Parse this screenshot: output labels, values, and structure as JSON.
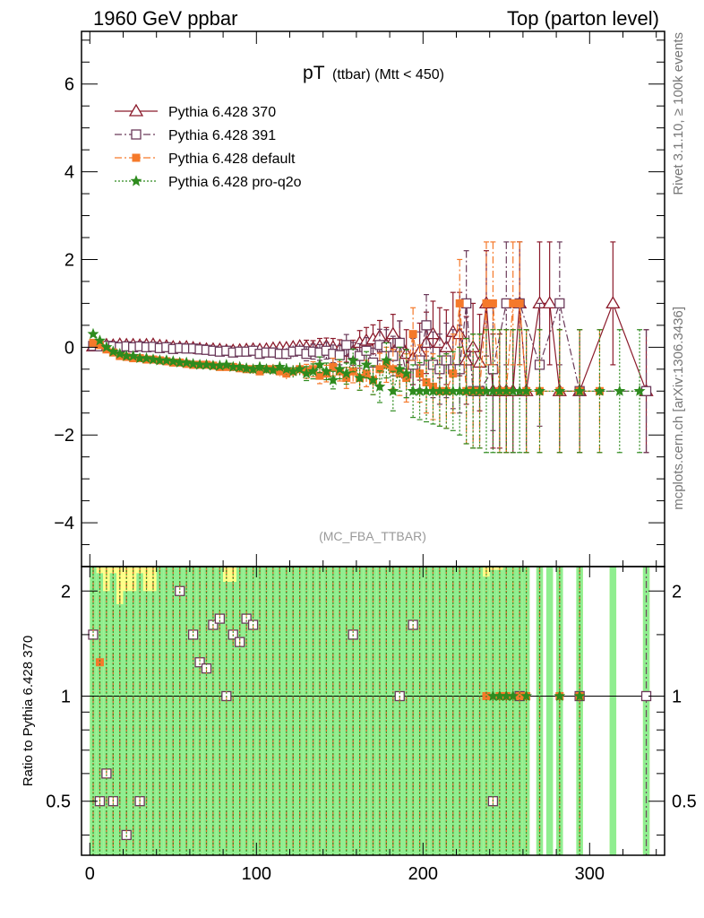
{
  "header": {
    "left": "1960 GeV ppbar",
    "right": "Top (parton level)"
  },
  "side_labels": {
    "rivet": "Rivet 3.1.10, ≥ 100k events",
    "mcplots": "mcplots.cern.ch [arXiv:1306.3436]"
  },
  "chart_data": {
    "type": "scatter",
    "title_main": "pT",
    "title_sub": "(ttbar) (Mtt < 450)",
    "watermark": "(MC_FBA_TTBAR)",
    "xlim": [
      -5,
      345
    ],
    "ylim": [
      -5,
      7.2
    ],
    "xticks": [
      0,
      100,
      200,
      300
    ],
    "yticks": [
      -4,
      -2,
      0,
      2,
      4,
      6
    ],
    "ratio": {
      "ylabel": "Ratio to Pythia 6.428 370",
      "ylim": [
        0.35,
        2.35
      ],
      "yticks": [
        0.5,
        1,
        2
      ],
      "reference_line": 1
    },
    "legend_position": "top-left",
    "series": [
      {
        "name": "Pythia 6.428 370",
        "color": "#8b1a2b",
        "marker": "open-triangle",
        "line": "solid",
        "x": [
          2,
          6,
          10,
          14,
          18,
          22,
          26,
          30,
          34,
          38,
          42,
          46,
          50,
          54,
          58,
          62,
          66,
          70,
          74,
          78,
          82,
          86,
          90,
          94,
          98,
          102,
          106,
          110,
          114,
          118,
          122,
          126,
          130,
          134,
          138,
          142,
          146,
          150,
          154,
          158,
          162,
          166,
          170,
          174,
          178,
          182,
          186,
          190,
          194,
          198,
          202,
          206,
          210,
          214,
          218,
          222,
          226,
          230,
          234,
          238,
          242,
          246,
          250,
          254,
          258,
          262,
          270,
          276,
          282,
          294,
          314,
          334
        ],
        "y": [
          0.02,
          0.04,
          0.05,
          0.04,
          0.06,
          0.05,
          0.05,
          0.04,
          0.05,
          0.06,
          0.03,
          0.02,
          0.0,
          -0.01,
          0.0,
          -0.02,
          -0.04,
          -0.05,
          -0.05,
          -0.06,
          -0.08,
          -0.08,
          -0.07,
          -0.06,
          -0.05,
          -0.06,
          -0.05,
          -0.03,
          -0.02,
          -0.02,
          0.0,
          0.02,
          0.0,
          -0.02,
          0.02,
          0.02,
          0.0,
          -0.05,
          -0.1,
          -0.1,
          0.1,
          0.15,
          0.18,
          0.25,
          0.05,
          0.3,
          0.1,
          -0.15,
          -0.25,
          -0.1,
          0.1,
          0.3,
          0.1,
          0.0,
          0.35,
          0.3,
          -0.3,
          0.0,
          -0.35,
          1.0,
          -1.0,
          -1.0,
          -1.0,
          -1.0,
          1.0,
          -1.0,
          1.0,
          1.0,
          -1.0,
          -1.0,
          1.0,
          -1.0
        ],
        "err": [
          0.05,
          0.05,
          0.05,
          0.05,
          0.05,
          0.05,
          0.05,
          0.05,
          0.05,
          0.06,
          0.06,
          0.06,
          0.06,
          0.06,
          0.07,
          0.07,
          0.07,
          0.08,
          0.08,
          0.08,
          0.09,
          0.09,
          0.1,
          0.1,
          0.1,
          0.11,
          0.11,
          0.12,
          0.12,
          0.13,
          0.14,
          0.15,
          0.16,
          0.17,
          0.18,
          0.19,
          0.2,
          0.22,
          0.24,
          0.26,
          0.28,
          0.3,
          0.33,
          0.36,
          0.4,
          0.45,
          0.5,
          0.55,
          0.6,
          0.65,
          0.7,
          0.75,
          0.8,
          0.85,
          0.9,
          0.95,
          1.0,
          1.0,
          1.1,
          1.2,
          1.3,
          1.3,
          1.4,
          1.4,
          1.4,
          1.4,
          1.4,
          1.4,
          1.4,
          1.4,
          1.4,
          1.4
        ]
      },
      {
        "name": "Pythia 6.428 391",
        "color": "#6b3a5a",
        "marker": "open-square",
        "line": "dashdot",
        "x": [
          2,
          6,
          10,
          14,
          18,
          22,
          26,
          30,
          34,
          38,
          42,
          46,
          50,
          54,
          58,
          62,
          66,
          70,
          74,
          78,
          82,
          86,
          90,
          94,
          98,
          102,
          106,
          110,
          114,
          118,
          122,
          126,
          130,
          134,
          138,
          142,
          146,
          150,
          154,
          158,
          162,
          166,
          170,
          174,
          178,
          182,
          186,
          190,
          194,
          198,
          202,
          206,
          210,
          214,
          218,
          222,
          226,
          230,
          234,
          242,
          250,
          258,
          270,
          282,
          294,
          334
        ],
        "y": [
          0.03,
          0.02,
          0.03,
          0.02,
          0.0,
          0.02,
          0.0,
          0.02,
          0.0,
          0.01,
          -0.02,
          0.0,
          -0.04,
          -0.02,
          -0.03,
          -0.03,
          -0.05,
          -0.06,
          -0.08,
          -0.1,
          -0.08,
          -0.12,
          -0.1,
          -0.1,
          -0.08,
          -0.15,
          -0.12,
          -0.12,
          -0.15,
          -0.15,
          -0.1,
          -0.08,
          -0.15,
          -0.1,
          -0.12,
          -0.08,
          -0.15,
          -0.18,
          0.05,
          -0.15,
          -0.2,
          -0.08,
          -0.35,
          0.05,
          0.0,
          -0.2,
          0.1,
          -0.6,
          -0.4,
          -0.3,
          0.5,
          -0.4,
          -0.5,
          -0.3,
          -0.5,
          -0.5,
          1.0,
          -1.0,
          -1.0,
          -0.5,
          1.0,
          1.0,
          -0.4,
          1.0,
          -1.0,
          -1.0
        ],
        "err": [
          0.05,
          0.05,
          0.05,
          0.05,
          0.05,
          0.05,
          0.05,
          0.05,
          0.05,
          0.06,
          0.06,
          0.06,
          0.06,
          0.06,
          0.07,
          0.07,
          0.07,
          0.08,
          0.08,
          0.08,
          0.09,
          0.09,
          0.1,
          0.1,
          0.1,
          0.11,
          0.11,
          0.12,
          0.12,
          0.13,
          0.14,
          0.15,
          0.16,
          0.17,
          0.18,
          0.19,
          0.2,
          0.22,
          0.24,
          0.26,
          0.28,
          0.3,
          0.33,
          0.36,
          0.4,
          0.45,
          0.5,
          0.55,
          0.6,
          0.65,
          0.7,
          0.75,
          0.8,
          0.85,
          0.9,
          1.0,
          1.2,
          1.3,
          1.3,
          1.4,
          1.4,
          1.4,
          1.4,
          1.4,
          1.4,
          1.4
        ]
      },
      {
        "name": "Pythia 6.428 default",
        "color": "#f5792a",
        "marker": "filled-square",
        "line": "dashdot",
        "x": [
          2,
          6,
          10,
          14,
          18,
          22,
          26,
          30,
          34,
          38,
          42,
          46,
          50,
          54,
          58,
          62,
          66,
          70,
          74,
          78,
          82,
          86,
          90,
          94,
          98,
          102,
          106,
          110,
          114,
          118,
          122,
          126,
          130,
          134,
          138,
          142,
          146,
          150,
          154,
          158,
          162,
          166,
          170,
          174,
          178,
          182,
          186,
          190,
          194,
          198,
          202,
          206,
          210,
          214,
          218,
          222,
          226,
          230,
          234,
          238,
          242,
          246,
          250,
          254,
          258,
          262,
          270,
          282,
          294,
          306
        ],
        "y": [
          0.1,
          0.05,
          -0.05,
          -0.12,
          -0.2,
          -0.22,
          -0.25,
          -0.25,
          -0.28,
          -0.28,
          -0.3,
          -0.32,
          -0.35,
          -0.35,
          -0.38,
          -0.4,
          -0.4,
          -0.4,
          -0.42,
          -0.45,
          -0.45,
          -0.45,
          -0.48,
          -0.5,
          -0.5,
          -0.55,
          -0.5,
          -0.5,
          -0.55,
          -0.6,
          -0.55,
          -0.5,
          -0.55,
          -0.5,
          -0.65,
          -0.6,
          -0.45,
          -0.55,
          -0.7,
          -0.55,
          -0.7,
          -0.6,
          -0.75,
          -0.5,
          -0.4,
          -0.5,
          -0.6,
          -0.7,
          0.3,
          -0.6,
          -0.8,
          -0.9,
          -1.0,
          -1.0,
          -0.6,
          1.0,
          -1.0,
          -1.0,
          -1.0,
          1.0,
          1.0,
          -1.0,
          -1.0,
          1.0,
          1.0,
          -1.0,
          -1.0,
          -1.0,
          -1.0,
          -1.0
        ],
        "err": [
          0.05,
          0.05,
          0.05,
          0.05,
          0.05,
          0.05,
          0.05,
          0.05,
          0.05,
          0.06,
          0.06,
          0.06,
          0.06,
          0.06,
          0.07,
          0.07,
          0.07,
          0.08,
          0.08,
          0.08,
          0.09,
          0.09,
          0.1,
          0.1,
          0.1,
          0.11,
          0.11,
          0.12,
          0.12,
          0.13,
          0.14,
          0.15,
          0.16,
          0.17,
          0.18,
          0.19,
          0.2,
          0.22,
          0.24,
          0.26,
          0.28,
          0.3,
          0.33,
          0.36,
          0.4,
          0.45,
          0.5,
          0.55,
          0.6,
          0.65,
          0.7,
          0.75,
          0.8,
          0.85,
          0.9,
          1.0,
          1.2,
          1.3,
          1.3,
          1.4,
          1.4,
          1.4,
          1.4,
          1.4,
          1.4,
          1.4,
          1.4,
          1.4,
          1.4,
          1.4
        ]
      },
      {
        "name": "Pythia 6.428 pro-q2o",
        "color": "#2e8b1e",
        "marker": "filled-star",
        "line": "dotted",
        "x": [
          2,
          6,
          10,
          14,
          18,
          22,
          26,
          30,
          34,
          38,
          42,
          46,
          50,
          54,
          58,
          62,
          66,
          70,
          74,
          78,
          82,
          86,
          90,
          94,
          98,
          102,
          106,
          110,
          114,
          118,
          122,
          126,
          130,
          134,
          138,
          142,
          146,
          150,
          154,
          158,
          162,
          166,
          170,
          174,
          178,
          182,
          186,
          190,
          194,
          198,
          202,
          206,
          210,
          214,
          218,
          222,
          226,
          230,
          234,
          238,
          242,
          246,
          250,
          254,
          258,
          262,
          270,
          282,
          294,
          306,
          318,
          330
        ],
        "y": [
          0.3,
          0.15,
          0.0,
          -0.1,
          -0.15,
          -0.2,
          -0.2,
          -0.25,
          -0.25,
          -0.28,
          -0.3,
          -0.3,
          -0.32,
          -0.35,
          -0.35,
          -0.38,
          -0.4,
          -0.4,
          -0.42,
          -0.42,
          -0.4,
          -0.45,
          -0.45,
          -0.48,
          -0.5,
          -0.45,
          -0.5,
          -0.52,
          -0.45,
          -0.5,
          -0.55,
          -0.5,
          -0.6,
          -0.55,
          -0.4,
          -0.55,
          -0.75,
          -0.5,
          -0.6,
          -0.3,
          -0.7,
          -0.4,
          -0.75,
          -0.9,
          -0.3,
          -1.0,
          -0.5,
          -0.6,
          -1.0,
          -1.0,
          -1.0,
          -1.0,
          -1.0,
          -1.0,
          -1.0,
          -1.0,
          -1.0,
          -1.0,
          -1.0,
          -1.0,
          -1.0,
          -1.0,
          -1.0,
          -1.0,
          -1.0,
          -1.0,
          -1.0,
          -1.0,
          -1.0,
          -1.0,
          -1.0,
          -1.0
        ],
        "err": [
          0.05,
          0.05,
          0.05,
          0.05,
          0.05,
          0.05,
          0.05,
          0.05,
          0.05,
          0.06,
          0.06,
          0.06,
          0.06,
          0.06,
          0.07,
          0.07,
          0.07,
          0.08,
          0.08,
          0.08,
          0.09,
          0.09,
          0.1,
          0.1,
          0.1,
          0.11,
          0.11,
          0.12,
          0.12,
          0.13,
          0.14,
          0.15,
          0.16,
          0.17,
          0.18,
          0.19,
          0.2,
          0.22,
          0.24,
          0.26,
          0.28,
          0.3,
          0.33,
          0.36,
          0.4,
          0.45,
          0.5,
          0.55,
          0.6,
          0.65,
          0.7,
          0.75,
          0.8,
          0.85,
          0.9,
          1.0,
          1.2,
          1.3,
          1.3,
          1.4,
          1.4,
          1.4,
          1.4,
          1.4,
          1.4,
          1.4,
          1.4,
          1.4,
          1.4,
          1.4,
          1.4,
          1.4
        ]
      }
    ],
    "band_colors": {
      "yellow": "#ffff88",
      "green": "#90ee90"
    }
  }
}
